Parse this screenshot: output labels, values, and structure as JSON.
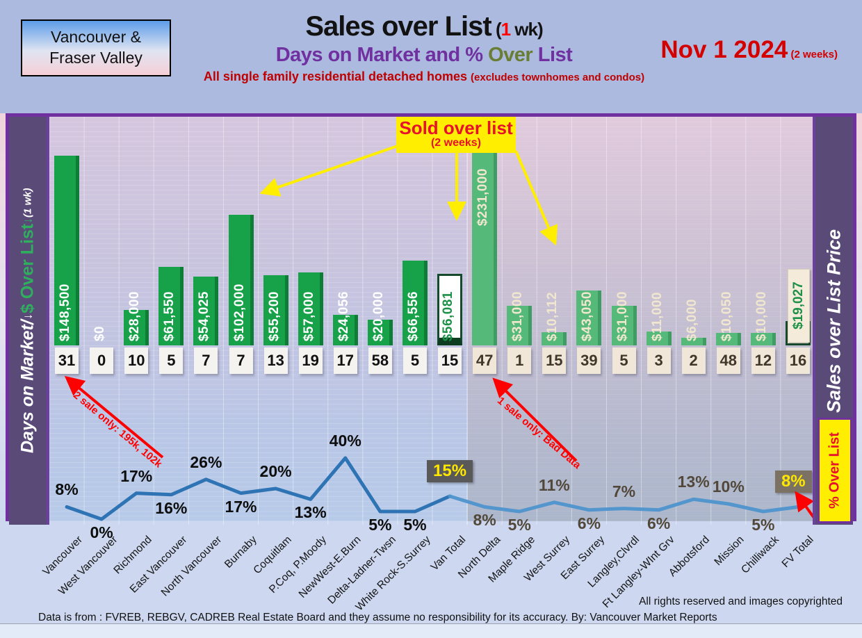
{
  "header": {
    "region": {
      "line1": "Vancouver &",
      "line2": "Fraser Valley"
    },
    "title": {
      "main": "Sales over List",
      "paren_open": " (",
      "highlight": "1",
      "paren_rest": " wk)"
    },
    "subtitle": {
      "part1": "Days on Market and % ",
      "part2": "Over",
      "part3": " List"
    },
    "subnote": {
      "main": "All single family residential detached homes ",
      "paren": "(excludes townhomes and condos)"
    },
    "date": {
      "main": "Nov 1  2024",
      "paren": " (2 weeks)"
    }
  },
  "left_axis": {
    "label1": "Days on Market/",
    "arrow1": "↓",
    "label2": " $ Over List",
    "arrow2": "↓",
    "label3": " (1 wk)"
  },
  "right_axis": {
    "label": "Sales over List Price",
    "pct_box_label": "% Over List"
  },
  "annotations": {
    "sold_over_list": {
      "title": "Sold over list",
      "sub": "(2 weeks)"
    },
    "two_sale": "2 sale only: 195k, 102k",
    "one_sale": "1 sale only: Bad Data"
  },
  "footer": {
    "rights": "All rights reserved and  images copyrighted",
    "source": "Data is from : FVREB, REBGV, CADREB Real Estate Board and they assume no responsibility for its accuracy. By: Vancouver Market Reports"
  },
  "colors": {
    "van_bar": "#17a149",
    "fv_bar": "#55b97a",
    "line_van": "#2e74b5",
    "line_fv": "#4d94cc",
    "accent_purple": "#7030a0",
    "sidebar_purple": "#594a78",
    "highlight_yellow": "#ffee00",
    "annotation_red": "#ff0000",
    "pct_box_van_bg": "#595959",
    "pct_box_fv_bg": "#7b7264"
  },
  "chart_data": {
    "type": "combo",
    "bar_series_name": "$ Over List (1 wk)",
    "days_series_name": "Days on Market",
    "line_series_name": "% Over List",
    "regions": [
      "Vancouver (through Van Total)",
      "Fraser Valley (through FV Total)"
    ],
    "grid": true,
    "points": [
      {
        "name": "Vancouver",
        "amount": 148500,
        "amount_label": "$148,500",
        "days": 31,
        "pct": 8,
        "side": "van",
        "pct_pos": "above"
      },
      {
        "name": "West Vancouver",
        "amount": 0,
        "amount_label": "$0",
        "days": 0,
        "pct": 0,
        "side": "van",
        "pct_pos": "below"
      },
      {
        "name": "Richmond",
        "amount": 28000,
        "amount_label": "$28,000",
        "days": 10,
        "pct": 17,
        "side": "van",
        "pct_pos": "above"
      },
      {
        "name": "East Vancouver",
        "amount": 61550,
        "amount_label": "$61,550",
        "days": 5,
        "pct": 16,
        "side": "van",
        "pct_pos": "below"
      },
      {
        "name": "North Vancouver",
        "amount": 54025,
        "amount_label": "$54,025",
        "days": 7,
        "pct": 26,
        "side": "van",
        "pct_pos": "above"
      },
      {
        "name": "Burnaby",
        "amount": 102000,
        "amount_label": "$102,000",
        "days": 7,
        "pct": 17,
        "side": "van",
        "pct_pos": "below"
      },
      {
        "name": "Coquitlam",
        "amount": 55200,
        "amount_label": "$55,200",
        "days": 13,
        "pct": 20,
        "side": "van",
        "pct_pos": "above"
      },
      {
        "name": "P.Coq, P.Moody",
        "amount": 57000,
        "amount_label": "$57,000",
        "days": 19,
        "pct": 13,
        "side": "van",
        "pct_pos": "below"
      },
      {
        "name": "NewWest-E.Burn",
        "amount": 24056,
        "amount_label": "$24,056",
        "days": 17,
        "pct": 40,
        "side": "van",
        "pct_pos": "above"
      },
      {
        "name": "Delta-Ladner-Twsn",
        "amount": 20000,
        "amount_label": "$20,000",
        "days": 58,
        "pct": 5,
        "side": "van",
        "pct_pos": "below"
      },
      {
        "name": "White Rock-S.Surrey",
        "amount": 66556,
        "amount_label": "$66,556",
        "days": 5,
        "pct": 5,
        "side": "van",
        "pct_pos": "below"
      },
      {
        "name": "Van Total",
        "amount": 56081,
        "amount_label": "$56,081",
        "days": 15,
        "pct": 15,
        "side": "van",
        "pct_pos": "box",
        "special": "total"
      },
      {
        "name": "North Delta",
        "amount": 231000,
        "amount_label": "$231,000",
        "days": 47,
        "pct": 8,
        "side": "fv",
        "pct_pos": "below",
        "special": "clipped"
      },
      {
        "name": "Maple Ridge",
        "amount": 31000,
        "amount_label": "$31,000",
        "days": 1,
        "pct": 5,
        "side": "fv",
        "pct_pos": "below"
      },
      {
        "name": "West Surrey",
        "amount": 10112,
        "amount_label": "$10,112",
        "days": 15,
        "pct": 11,
        "side": "fv",
        "pct_pos": "above"
      },
      {
        "name": "East Surrey",
        "amount": 43050,
        "amount_label": "$43,050",
        "days": 39,
        "pct": 6,
        "side": "fv",
        "pct_pos": "below"
      },
      {
        "name": "Langley,Clvrdl",
        "amount": 31000,
        "amount_label": "$31,000",
        "days": 5,
        "pct": 7,
        "side": "fv",
        "pct_pos": "above"
      },
      {
        "name": "Ft Langley-WInt Grv",
        "amount": 11000,
        "amount_label": "$11,000",
        "days": 3,
        "pct": 6,
        "side": "fv",
        "pct_pos": "below"
      },
      {
        "name": "Abbotsford",
        "amount": 6000,
        "amount_label": "$6,000",
        "days": 2,
        "pct": 13,
        "side": "fv",
        "pct_pos": "above"
      },
      {
        "name": "Mission",
        "amount": 10050,
        "amount_label": "$10,050",
        "days": 48,
        "pct": 10,
        "side": "fv",
        "pct_pos": "above"
      },
      {
        "name": "Chilliwack",
        "amount": 10000,
        "amount_label": "$10,000",
        "days": 12,
        "pct": 5,
        "side": "fv",
        "pct_pos": "below"
      },
      {
        "name": "FV Total",
        "amount": 19027,
        "amount_label": "$19,027",
        "days": 16,
        "pct": 8,
        "side": "fv",
        "pct_pos": "box",
        "special": "total"
      }
    ]
  }
}
